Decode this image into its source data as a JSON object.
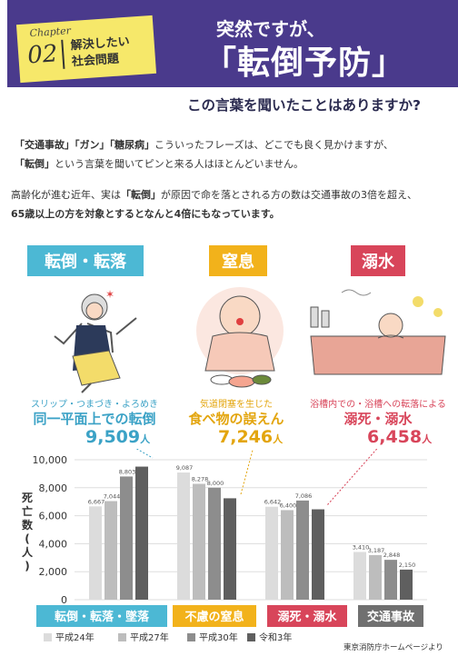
{
  "header": {
    "chapter_label": "Chapter",
    "chapter_num": "02",
    "chapter_title_1": "解決したい",
    "chapter_title_2": "社会問題",
    "title_line1": "突然ですが、",
    "title_line2": "「転倒予防」",
    "question": "この言葉を聞いたことはありますか?"
  },
  "intro": {
    "p1_q1": "「交通事故」「ガン」「糖尿病」",
    "p1_rest": "こういったフレーズは、どこでも良く見かけますが、",
    "p1_q2": "「転倒」",
    "p1_rest2": "という言葉を聞いてピンと来る人はほとんどいません。",
    "p2_a": "高齢化が進む近年、実は",
    "p2_b": "「転倒」",
    "p2_c": "が原因で命を落とされる方の数は交通事故の3倍を超え、",
    "p2_d": "65歳以上の方を対象とするとなんと4倍にもなっています。"
  },
  "categories": [
    {
      "label": "転倒・転落",
      "color": "#4cb8d4",
      "caption1": "スリップ・つまづき・よろめき",
      "caption2": "同一平面上での転倒",
      "number": "9,509",
      "unit": "人",
      "text_color": "#3ba2c6"
    },
    {
      "label": "窒息",
      "color": "#f2b21b",
      "caption1": "気道閉塞を生じた",
      "caption2": "食べ物の誤えん",
      "number": "7,246",
      "unit": "人",
      "text_color": "#e3a50e"
    },
    {
      "label": "溺水",
      "color": "#d8455a",
      "caption1": "浴槽内での・浴槽への転落による",
      "caption2": "溺死・溺水",
      "number": "6,458",
      "unit": "人",
      "text_color": "#d8455a"
    }
  ],
  "colors": {
    "banner": "#4a3a8c",
    "badge": "#f6e86a"
  },
  "chart_data": {
    "type": "bar",
    "ylabel": "死亡数(人)",
    "ylim": [
      0,
      10000
    ],
    "yticks": [
      "0",
      "2,000",
      "4,000",
      "6,000",
      "8,000",
      "10,000"
    ],
    "categories": [
      "転倒・転落・墜落",
      "不慮の窒息",
      "溺死・溺水",
      "交通事故"
    ],
    "category_colors": [
      "#4cb8d4",
      "#f2b21b",
      "#d8455a",
      "#707070"
    ],
    "series": [
      {
        "name": "平成24年",
        "color": "#dcdcdc",
        "values": [
          6667,
          9087,
          6642,
          3410
        ]
      },
      {
        "name": "平成27年",
        "color": "#bdbdbd",
        "values": [
          7044,
          8278,
          6400,
          3187
        ]
      },
      {
        "name": "平成30年",
        "color": "#8d8d8d",
        "values": [
          8803,
          8000,
          7086,
          2848
        ]
      },
      {
        "name": "令和3年",
        "color": "#5f5f5f",
        "values": [
          9509,
          7246,
          6458,
          2150
        ]
      }
    ],
    "data_labels": [
      [
        "6,667",
        "7,044",
        "8,803",
        ""
      ],
      [
        "9,087",
        "8,278",
        "8,000",
        ""
      ],
      [
        "6,642",
        "6,400",
        "7,086",
        ""
      ],
      [
        "3,410",
        "3,187",
        "2,848",
        "2,150"
      ]
    ]
  },
  "source": "東京消防庁ホームページより"
}
